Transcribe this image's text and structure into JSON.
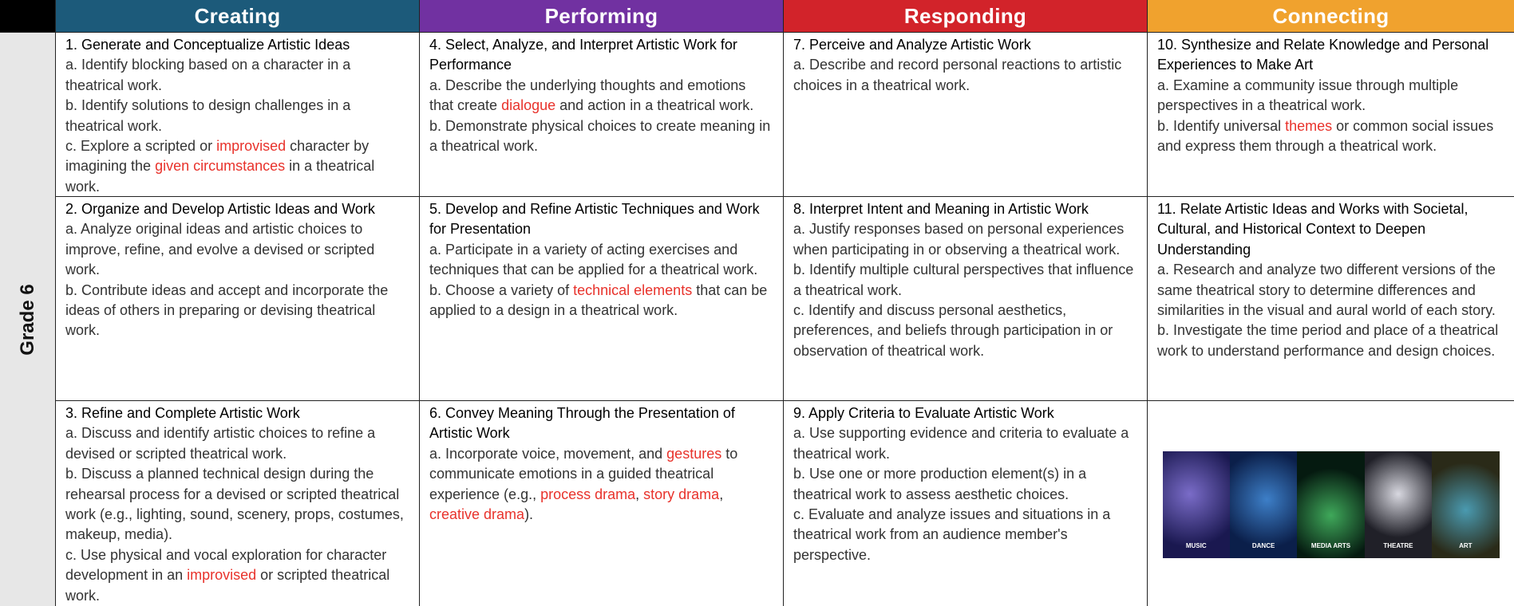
{
  "header": {
    "columns": [
      {
        "title": "Creating",
        "color": "#1c5a7a"
      },
      {
        "title": "Performing",
        "color": "#7131a1"
      },
      {
        "title": "Responding",
        "color": "#d2232a"
      },
      {
        "title": "Connecting",
        "color": "#f0a22e"
      }
    ]
  },
  "row_label": "Grade 6",
  "highlight_color": "#e8322b",
  "cells": [
    [
      {
        "title": "1. Generate and Conceptualize Artistic Ideas",
        "items": [
          [
            "a. Identify blocking based on a character in a theatrical work."
          ],
          [
            "b. Identify solutions to design challenges in a theatrical work."
          ],
          [
            "c. Explore a scripted or ",
            {
              "text": "improvised",
              "highlight": true
            },
            " character by imagining the ",
            {
              "text": "given circumstances",
              "highlight": true
            },
            " in a theatrical work."
          ]
        ]
      },
      {
        "title": "4. Select, Analyze, and Interpret Artistic Work for Performance",
        "items": [
          [
            "a. Describe the underlying thoughts and emotions that create ",
            {
              "text": "dialogue",
              "highlight": true
            },
            " and action in a theatrical work."
          ],
          [
            "b. Demonstrate physical choices to create meaning in a theatrical work."
          ]
        ]
      },
      {
        "title": "7. Perceive and Analyze Artistic Work",
        "items": [
          [
            "a. Describe and record personal reactions to artistic choices in a theatrical work."
          ]
        ]
      },
      {
        "title": "10. Synthesize and Relate Knowledge and Personal Experiences to Make Art",
        "items": [
          [
            "a. Examine a community issue through multiple perspectives in a theatrical work."
          ],
          [
            "b. Identify universal ",
            {
              "text": "themes",
              "highlight": true
            },
            " or common social issues and express them through a theatrical work."
          ]
        ]
      }
    ],
    [
      {
        "title": "2. Organize and Develop Artistic Ideas and Work",
        "items": [
          [
            "a. Analyze original ideas and artistic choices to improve, refine, and evolve a devised or scripted work."
          ],
          [
            "b. Contribute ideas and accept and incorporate the ideas of others in preparing or devising theatrical work."
          ]
        ]
      },
      {
        "title": "5. Develop and Refine Artistic Techniques and Work for Presentation",
        "items": [
          [
            "a. Participate in a variety of acting exercises and techniques that can be applied for a theatrical work."
          ],
          [
            "b. Choose a variety of ",
            {
              "text": "technical elements",
              "highlight": true
            },
            " that can be applied to a design in a theatrical work."
          ]
        ]
      },
      {
        "title": "8. Interpret Intent and Meaning in Artistic Work",
        "items": [
          [
            "a. Justify responses based on personal experiences when participating in or observing a theatrical work."
          ],
          [
            "b. Identify multiple cultural perspectives that influence a theatrical work."
          ],
          [
            "c. Identify and discuss personal aesthetics, preferences, and beliefs through participation in or observation of theatrical work."
          ]
        ]
      },
      {
        "title": "11. Relate Artistic Ideas and Works with Societal, Cultural, and Historical Context to Deepen Understanding",
        "items": [
          [
            "a. Research and analyze two different versions of the same theatrical story to determine differences and similarities in the visual and aural world of each story."
          ],
          [
            "b. Investigate the time period and place of a theatrical work to understand performance and design choices."
          ]
        ]
      }
    ],
    [
      {
        "title": "3. Refine and Complete Artistic Work",
        "items": [
          [
            "a. Discuss and identify artistic choices to refine a devised or scripted theatrical work."
          ],
          [
            "b. Discuss a planned technical design during the rehearsal process for a devised or scripted theatrical work (e.g., lighting, sound, scenery, props, costumes, makeup, media)."
          ],
          [
            "c. Use physical and vocal exploration for character development in an ",
            {
              "text": "improvised",
              "highlight": true
            },
            " or scripted theatrical work."
          ]
        ]
      },
      {
        "title": "6. Convey Meaning Through the Presentation of Artistic Work",
        "items": [
          [
            "a. Incorporate voice, movement, and ",
            {
              "text": "gestures",
              "highlight": true
            },
            " to communicate emotions in a guided theatrical experience (e.g., ",
            {
              "text": "process drama",
              "highlight": true
            },
            ", ",
            {
              "text": "story drama",
              "highlight": true
            },
            ", ",
            {
              "text": "creative drama",
              "highlight": true
            },
            ")."
          ]
        ]
      },
      {
        "title": "9. Apply Criteria to Evaluate Artistic Work",
        "items": [
          [
            "a. Use supporting evidence and criteria to evaluate a theatrical work."
          ],
          [
            "b. Use one or more production element(s) in a theatrical work to assess aesthetic choices."
          ],
          [
            "c. Evaluate and analyze issues and situations in a theatrical work from an audience member's perspective."
          ]
        ]
      },
      {
        "image_captions": [
          "MUSIC",
          "DANCE",
          "MEDIA ARTS",
          "THEATRE",
          "ART"
        ]
      }
    ]
  ]
}
